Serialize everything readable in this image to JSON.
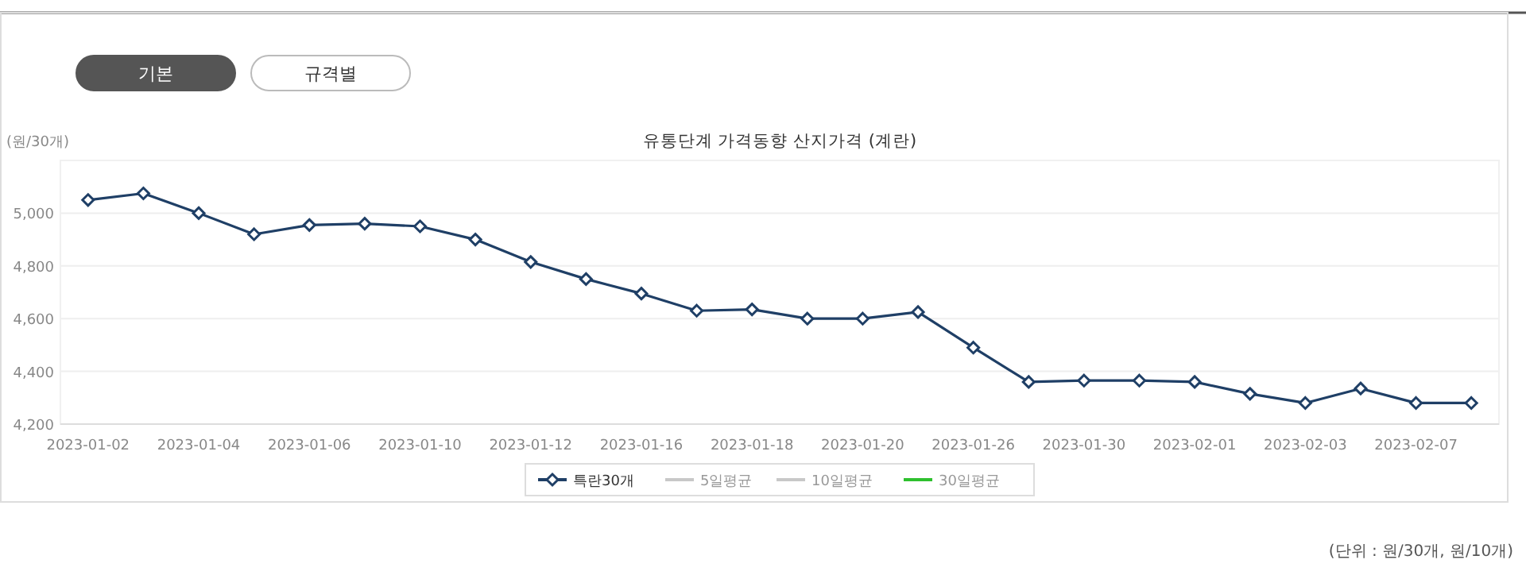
{
  "chart_data": {
    "type": "line",
    "title": "유통단계 가격동향 산지가격 (계란)",
    "ylabel": "(원/30개)",
    "annotations": [
      "기본",
      "규격별",
      "(단위 : 원/30개, 원/10개)"
    ],
    "categories": [
      "2023-01-02",
      null,
      "2023-01-04",
      null,
      "2023-01-06",
      null,
      "2023-01-10",
      null,
      "2023-01-12",
      null,
      "2023-01-16",
      null,
      "2023-01-18",
      null,
      "2023-01-20",
      null,
      "2023-01-26",
      null,
      "2023-01-30",
      null,
      "2023-02-01",
      null,
      "2023-02-03",
      null,
      "2023-02-07",
      null
    ],
    "series": [
      {
        "name": "특란30개",
        "color": "#1f3f66",
        "values": [
          5050,
          5075,
          5000,
          4920,
          4955,
          4960,
          4950,
          4900,
          4815,
          4750,
          4695,
          4630,
          4635,
          4600,
          4600,
          4625,
          4490,
          4360,
          4365,
          4365,
          4360,
          4315,
          4280,
          4335,
          4280,
          4280
        ]
      },
      {
        "name": "5일평균",
        "color": "#c8c8c8",
        "values": [
          null,
          null,
          null,
          null,
          null,
          null,
          null,
          null,
          null,
          null,
          null,
          null,
          null,
          null,
          null,
          null,
          null,
          null,
          null,
          null,
          null,
          null,
          null,
          null,
          null,
          null
        ]
      },
      {
        "name": "10일평균",
        "color": "#c8c8c8",
        "values": [
          null,
          null,
          null,
          null,
          null,
          null,
          null,
          null,
          null,
          null,
          null,
          null,
          null,
          null,
          null,
          null,
          null,
          null,
          null,
          null,
          null,
          null,
          null,
          null,
          null,
          null
        ]
      },
      {
        "name": "30일평균",
        "color": "#2ec02e",
        "values": [
          null,
          null,
          null,
          null,
          null,
          null,
          null,
          null,
          null,
          null,
          null,
          null,
          null,
          null,
          null,
          null,
          null,
          null,
          null,
          null,
          null,
          null,
          null,
          null,
          null,
          null
        ]
      }
    ],
    "ylim": [
      4200,
      5200
    ],
    "yticks": [
      {
        "value": 4200,
        "label": "4,200"
      },
      {
        "value": 4400,
        "label": "4,400"
      },
      {
        "value": 4600,
        "label": "4,600"
      },
      {
        "value": 4800,
        "label": "4,800"
      },
      {
        "value": 5000,
        "label": "5,000"
      }
    ],
    "grid": "y",
    "legend": "bottom",
    "marker": "diamond",
    "line_style": "solid"
  }
}
